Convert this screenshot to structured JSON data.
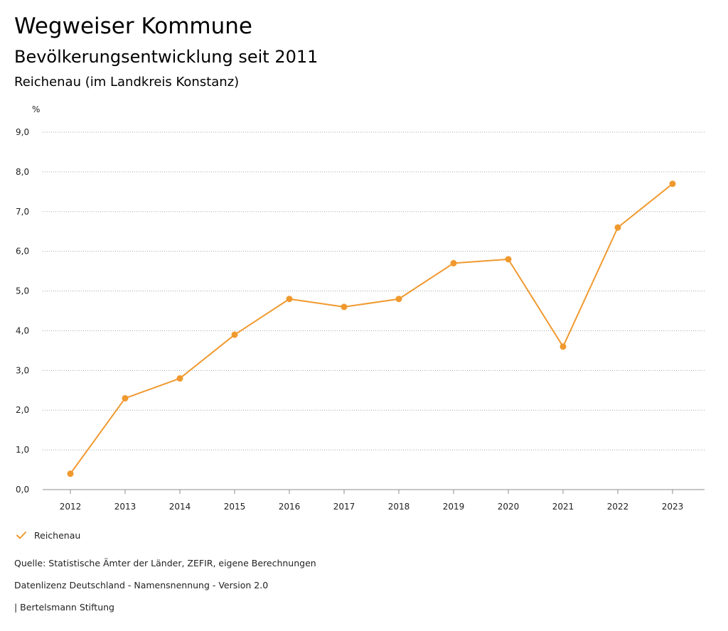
{
  "header": {
    "title": "Wegweiser Kommune",
    "subtitle": "Bevölkerungsentwicklung seit 2011",
    "region": "Reichenau (im Landkreis Konstanz)"
  },
  "legend": {
    "label": "Reichenau"
  },
  "footer": {
    "source": "Quelle: Statistische Ämter der Länder, ZEFIR, eigene Berechnungen",
    "license": "Datenlizenz Deutschland - Namensnennung - Version 2.0",
    "publisher": "| Bertelsmann Stiftung"
  },
  "colors": {
    "series": "#f0992f",
    "grid": "#a8a8a8",
    "axis": "#8c8c8c"
  },
  "chart_data": {
    "type": "line",
    "title": "Bevölkerungsentwicklung seit 2011",
    "xlabel": "",
    "ylabel": "%",
    "ylim": [
      0,
      9
    ],
    "grid": true,
    "legend_position": "bottom-left",
    "y_ticks": [
      "0,0",
      "1,0",
      "2,0",
      "3,0",
      "4,0",
      "5,0",
      "6,0",
      "7,0",
      "8,0",
      "9,0"
    ],
    "categories": [
      "2012",
      "2013",
      "2014",
      "2015",
      "2016",
      "2017",
      "2018",
      "2019",
      "2020",
      "2021",
      "2022",
      "2023"
    ],
    "series": [
      {
        "name": "Reichenau",
        "values": [
          0.4,
          2.3,
          2.8,
          3.9,
          4.8,
          4.6,
          4.8,
          5.7,
          5.8,
          3.6,
          6.6,
          7.7
        ]
      }
    ]
  }
}
